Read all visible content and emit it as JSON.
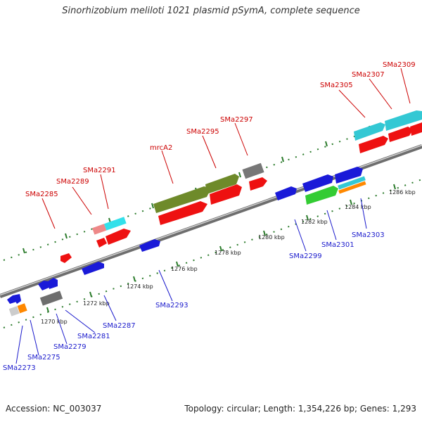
{
  "title": "Sinorhizobium meliloti 1021 plasmid pSymA, complete sequence",
  "footer": {
    "accession": "Accession: NC_003037",
    "summary": "Topology: circular; Length: 1,354,226 bp; Genes: 1,293"
  },
  "colors": {
    "forward_label": "#cc0000",
    "reverse_label": "#1a1acc",
    "backbone": "#888888",
    "dots": "#2a7a2a"
  },
  "ticks": [
    "1270 kbp",
    "1272 kbp",
    "1274 kbp",
    "1276 kbp",
    "1278 kbp",
    "1280 kbp",
    "1282 kbp",
    "1284 kbp",
    "1286 kbp"
  ],
  "forward_labels": [
    "SMa2285",
    "SMa2289",
    "SMa2291",
    "mrcA2",
    "SMa2295",
    "SMa2297",
    "SMa2305",
    "SMa2307",
    "SMa2309"
  ],
  "reverse_labels": [
    "SMa2273",
    "SMa2275",
    "SMa2279",
    "SMa2281",
    "SMa2287",
    "SMa2293",
    "SMa2299",
    "SMa2301",
    "SMa2303"
  ]
}
